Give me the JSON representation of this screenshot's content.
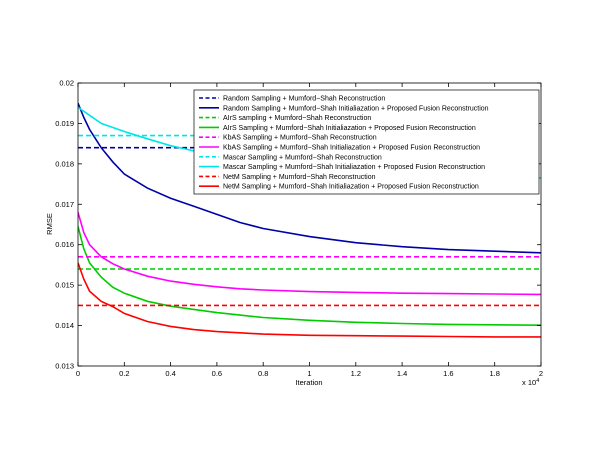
{
  "chart_data": {
    "type": "line",
    "title": "",
    "xlabel": "Iteration",
    "ylabel": "RMSE",
    "x_multiplier_label": "x 10",
    "x_multiplier_exponent": "4",
    "xlim": [
      0,
      20000
    ],
    "ylim": [
      0.013,
      0.02
    ],
    "xticks": [
      0,
      2000,
      4000,
      6000,
      8000,
      10000,
      12000,
      14000,
      16000,
      18000,
      20000
    ],
    "xtick_labels": [
      "0",
      "0.2",
      "0.4",
      "0.6",
      "0.8",
      "1",
      "1.2",
      "1.4",
      "1.6",
      "1.8",
      "2"
    ],
    "yticks": [
      0.013,
      0.014,
      0.015,
      0.016,
      0.017,
      0.018,
      0.019,
      0.02
    ],
    "ytick_labels": [
      "0.013",
      "0.014",
      "0.015",
      "0.016",
      "0.017",
      "0.018",
      "0.019",
      "0.02"
    ],
    "grid": false,
    "legend_position": "top-right",
    "series": [
      {
        "name": "Random Sampling + Mumford−Shah Reconstruction",
        "color": "#0000aa",
        "dashed": true,
        "x": [
          0,
          20000
        ],
        "y": [
          0.0184,
          0.0184
        ]
      },
      {
        "name": "Random Sampling + Mumford−Shah Initialiazation + Proposed Fusion Reconstruction",
        "color": "#0000aa",
        "dashed": false,
        "x": [
          0,
          250,
          500,
          1000,
          1500,
          2000,
          3000,
          4000,
          5000,
          6000,
          7000,
          8000,
          10000,
          12000,
          14000,
          16000,
          18000,
          20000
        ],
        "y": [
          0.0195,
          0.01915,
          0.01885,
          0.0184,
          0.01805,
          0.01775,
          0.0174,
          0.01715,
          0.01695,
          0.01675,
          0.01655,
          0.0164,
          0.0162,
          0.01605,
          0.01595,
          0.01588,
          0.01584,
          0.0158
        ]
      },
      {
        "name": "AIrS sampling + Mumford−Shah Reconstruction",
        "color": "#00cc00",
        "dashed": true,
        "x": [
          0,
          20000
        ],
        "y": [
          0.0154,
          0.0154
        ]
      },
      {
        "name": "AIrS Sampling + Mumford−Shah Initialiazation + Proposed Fusion Reconstruction",
        "color": "#00cc00",
        "dashed": false,
        "x": [
          0,
          250,
          500,
          1000,
          1500,
          2000,
          3000,
          4000,
          5000,
          6000,
          7000,
          8000,
          10000,
          12000,
          14000,
          16000,
          18000,
          20000
        ],
        "y": [
          0.01645,
          0.0159,
          0.01555,
          0.0152,
          0.01495,
          0.0148,
          0.0146,
          0.01448,
          0.0144,
          0.01432,
          0.01426,
          0.0142,
          0.01413,
          0.01408,
          0.01405,
          0.01403,
          0.01402,
          0.01401
        ]
      },
      {
        "name": "KbAS Sampling + Mumford−Shah Reconstruction",
        "color": "#ff00ff",
        "dashed": true,
        "x": [
          0,
          20000
        ],
        "y": [
          0.0157,
          0.0157
        ]
      },
      {
        "name": "KbAS Sampling + Mumford−Shah Initialiazation + Proposed Fusion Reconstruction",
        "color": "#ff00ff",
        "dashed": false,
        "x": [
          0,
          250,
          500,
          1000,
          1500,
          2000,
          3000,
          4000,
          5000,
          6000,
          7000,
          8000,
          10000,
          12000,
          14000,
          16000,
          18000,
          20000
        ],
        "y": [
          0.0168,
          0.0163,
          0.016,
          0.0157,
          0.01553,
          0.0154,
          0.01522,
          0.0151,
          0.01502,
          0.01496,
          0.01491,
          0.01488,
          0.01484,
          0.01482,
          0.0148,
          0.01479,
          0.01478,
          0.01477
        ]
      },
      {
        "name": "Mascar Sampling + Mumford−Shah Reconstruction",
        "color": "#00e6e6",
        "dashed": true,
        "x": [
          0,
          20000
        ],
        "y": [
          0.0187,
          0.0187
        ]
      },
      {
        "name": "Mascar Sampling + Mumford−Shah Initialiazation + Proposed Fusion Reconstruction",
        "color": "#00e6e6",
        "dashed": false,
        "x": [
          0,
          500,
          1000,
          2000,
          3000,
          4000,
          5000,
          6000,
          8000,
          10000,
          12000,
          14000,
          16000,
          18000,
          20000
        ],
        "y": [
          0.0194,
          0.0192,
          0.019,
          0.0188,
          0.01862,
          0.01845,
          0.01832,
          0.0182,
          0.018,
          0.01788,
          0.0178,
          0.01774,
          0.0177,
          0.01767,
          0.01765
        ]
      },
      {
        "name": "NetM Sampling + Mumford−Shah Reconstruction",
        "color": "#ff0000",
        "dashed": true,
        "x": [
          0,
          20000
        ],
        "y": [
          0.0145,
          0.0145
        ]
      },
      {
        "name": "NetM Sampling + Mumford−Shah Initialiazation + Proposed Fusion Reconstruction",
        "color": "#ff0000",
        "dashed": false,
        "x": [
          0,
          250,
          500,
          1000,
          1500,
          2000,
          3000,
          4000,
          5000,
          6000,
          7000,
          8000,
          10000,
          12000,
          14000,
          16000,
          18000,
          20000
        ],
        "y": [
          0.01555,
          0.01515,
          0.01485,
          0.0146,
          0.01447,
          0.0143,
          0.0141,
          0.01398,
          0.0139,
          0.01385,
          0.01382,
          0.01379,
          0.01376,
          0.01375,
          0.01374,
          0.01373,
          0.01372,
          0.01372
        ]
      }
    ]
  }
}
